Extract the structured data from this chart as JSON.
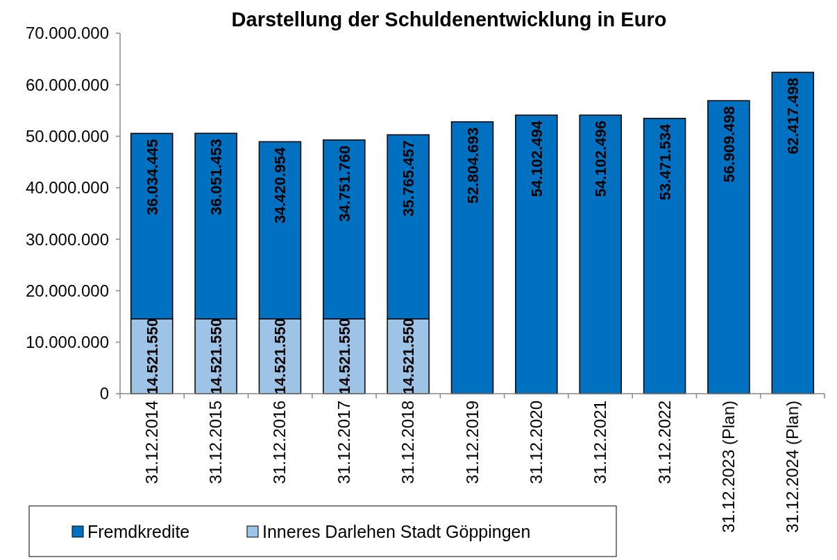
{
  "chart_data": {
    "type": "bar",
    "title": "Darstellung der Schuldenentwicklung in Euro",
    "stacked": true,
    "categories": [
      "31.12.2014",
      "31.12.2015",
      "31.12.2016",
      "31.12.2017",
      "31.12.2018",
      "31.12.2019",
      "31.12.2020",
      "31.12.2021",
      "31.12.2022",
      "31.12.2023 (Plan)",
      "31.12.2024 (Plan)"
    ],
    "series": [
      {
        "name": "Inneres Darlehen Stadt Göppingen",
        "color": "#9dc3e6",
        "values": [
          14521550,
          14521550,
          14521550,
          14521550,
          14521550,
          null,
          null,
          null,
          null,
          null,
          null
        ],
        "value_labels": [
          "14.521.550",
          "14.521.550",
          "14.521.550",
          "14.521.550",
          "14.521.550",
          null,
          null,
          null,
          null,
          null,
          null
        ]
      },
      {
        "name": "Fremdkredite",
        "color": "#0070c0",
        "values": [
          36034445,
          36051453,
          34420954,
          34751760,
          35765457,
          52804693,
          54102494,
          54102496,
          53471534,
          56909498,
          62417498
        ],
        "value_labels": [
          "36.034.445",
          "36.051.453",
          "34.420.954",
          "34.751.760",
          "35.765.457",
          "52.804.693",
          "54.102.494",
          "54.102.496",
          "53.471.534",
          "56.909.498",
          "62.417.498"
        ]
      }
    ],
    "ylim": [
      0,
      70000000
    ],
    "yticks": [
      {
        "value": 0,
        "label": "0"
      },
      {
        "value": 10000000,
        "label": "10.000.000"
      },
      {
        "value": 20000000,
        "label": "20.000.000"
      },
      {
        "value": 30000000,
        "label": "30.000.000"
      },
      {
        "value": 40000000,
        "label": "40.000.000"
      },
      {
        "value": 50000000,
        "label": "50.000.000"
      },
      {
        "value": 60000000,
        "label": "60.000.000"
      },
      {
        "value": 70000000,
        "label": "70.000.000"
      }
    ],
    "grid": false,
    "legend": "bottom left"
  }
}
